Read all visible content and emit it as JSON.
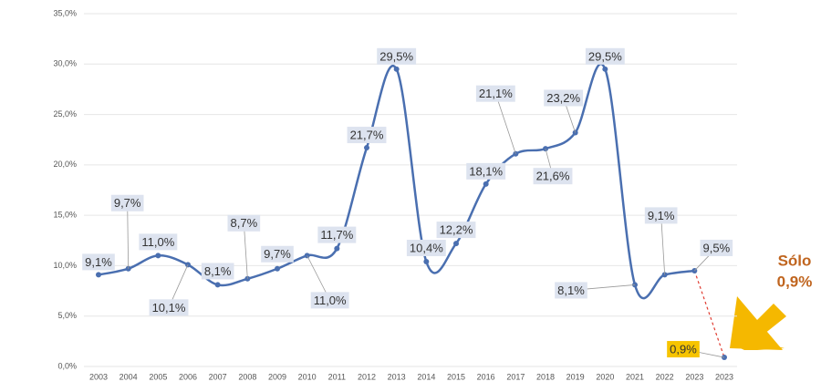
{
  "chart_data": {
    "type": "line",
    "categories": [
      "2003",
      "2004",
      "2005",
      "2006",
      "2007",
      "2008",
      "2009",
      "2010",
      "2011",
      "2012",
      "2013",
      "2014",
      "2015",
      "2016",
      "2017",
      "2018",
      "2019",
      "2020",
      "2021",
      "2022",
      "2023",
      "2023"
    ],
    "series": [
      {
        "color": "#4a6fb0",
        "values": [
          9.1,
          9.7,
          11.0,
          10.1,
          8.1,
          8.7,
          9.7,
          11.0,
          11.7,
          21.7,
          29.5,
          10.4,
          12.2,
          18.1,
          21.1,
          21.6,
          23.2,
          29.5,
          8.1,
          9.1,
          9.5,
          null
        ],
        "value_labels": [
          "9,1%",
          "9,7%",
          "11,0%",
          "10,1%",
          "8,1%",
          "8,7%",
          "9,7%",
          "11,0%",
          "11,7%",
          "21,7%",
          "29,5%",
          "10,4%",
          "12,2%",
          "18,1%",
          "21,1%",
          "21,6%",
          "23,2%",
          "29,5%",
          "8,1%",
          "9,1%",
          "9,5%",
          null
        ]
      },
      {
        "color": "#e03c31",
        "values": [
          null,
          null,
          null,
          null,
          null,
          null,
          null,
          null,
          null,
          null,
          null,
          null,
          null,
          null,
          null,
          null,
          null,
          null,
          null,
          null,
          null,
          0.9
        ],
        "value_labels": [
          null,
          null,
          null,
          null,
          null,
          null,
          null,
          null,
          null,
          null,
          null,
          null,
          null,
          null,
          null,
          null,
          null,
          null,
          null,
          null,
          null,
          "0,9%"
        ]
      }
    ],
    "ylim": [
      0,
      35
    ],
    "yticks": [
      {
        "value": 0,
        "label": "0,0%"
      },
      {
        "value": 5,
        "label": "5,0%"
      },
      {
        "value": 10,
        "label": "10,0%"
      },
      {
        "value": 15,
        "label": "15,0%"
      },
      {
        "value": 20,
        "label": "20,0%"
      },
      {
        "value": 25,
        "label": "25,0%"
      },
      {
        "value": 30,
        "label": "30,0%"
      },
      {
        "value": 35,
        "label": "35,0%"
      }
    ],
    "grid": true,
    "annotation": [
      "Sólo",
      "0,9%"
    ]
  }
}
